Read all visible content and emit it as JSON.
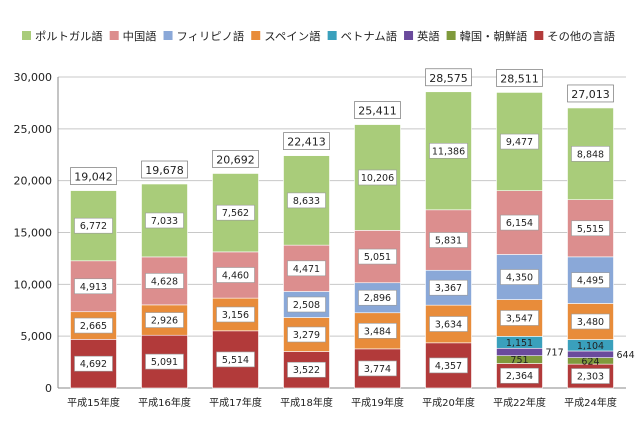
{
  "chart_data": {
    "type": "bar",
    "stacked": true,
    "categories": [
      "平成15年度",
      "平成16年度",
      "平成17年度",
      "平成18年度",
      "平成19年度",
      "平成20年度",
      "平成22年度",
      "平成24年度"
    ],
    "ylim": [
      0,
      30000
    ],
    "yticks": [
      "0",
      "5,000",
      "10,000",
      "15,000",
      "20,000",
      "25,000",
      "30,000"
    ],
    "grid": true,
    "legend_position": "top",
    "series": [
      {
        "name": "その他の言語",
        "color": "#b23a3a",
        "values": [
          4692,
          5091,
          5514,
          3522,
          3774,
          4357,
          2364,
          2303
        ],
        "labels": [
          "4,692",
          "5,091",
          "5,514",
          "3,522",
          "3,774",
          "4,357",
          "2,364",
          "2,303"
        ]
      },
      {
        "name": "韓国・朝鮮語",
        "color": "#7f9a3c",
        "values": [
          0,
          0,
          0,
          0,
          0,
          0,
          751,
          624
        ],
        "labels": [
          "",
          "",
          "",
          "",
          "",
          "",
          "751",
          "624"
        ]
      },
      {
        "name": "英語",
        "color": "#6a4a9c",
        "values": [
          0,
          0,
          0,
          0,
          0,
          0,
          717,
          644
        ],
        "labels": [
          "",
          "",
          "",
          "",
          "",
          "",
          "717",
          "644"
        ]
      },
      {
        "name": "ベトナム語",
        "color": "#3aa0bc",
        "values": [
          0,
          0,
          0,
          0,
          0,
          0,
          1151,
          1104
        ],
        "labels": [
          "",
          "",
          "",
          "",
          "",
          "",
          "1,151",
          "1,104"
        ]
      },
      {
        "name": "スペイン語",
        "color": "#e88c3a",
        "values": [
          2665,
          2926,
          3156,
          3279,
          3484,
          3634,
          3547,
          3480
        ],
        "labels": [
          "2,665",
          "2,926",
          "3,156",
          "3,279",
          "3,484",
          "3,634",
          "3,547",
          "3,480"
        ]
      },
      {
        "name": "フィリピノ語",
        "color": "#8aa8d8",
        "values": [
          0,
          0,
          0,
          2508,
          2896,
          3367,
          4350,
          4495
        ],
        "labels": [
          "",
          "",
          "",
          "2,508",
          "2,896",
          "3,367",
          "4,350",
          "4,495"
        ]
      },
      {
        "name": "中国語",
        "color": "#dc8e8e",
        "values": [
          4913,
          4628,
          4460,
          4471,
          5051,
          5831,
          6154,
          5515
        ],
        "labels": [
          "4,913",
          "4,628",
          "4,460",
          "4,471",
          "5,051",
          "5,831",
          "6,154",
          "5,515"
        ]
      },
      {
        "name": "ポルトガル語",
        "color": "#a9cc7a",
        "values": [
          6772,
          7033,
          7562,
          8633,
          10206,
          11386,
          9477,
          8848
        ],
        "labels": [
          "6,772",
          "7,033",
          "7,562",
          "8,633",
          "10,206",
          "11,386",
          "9,477",
          "8,848"
        ]
      }
    ],
    "totals": [
      "19,042",
      "19,678",
      "20,692",
      "22,413",
      "25,411",
      "28,575",
      "28,511",
      "27,013"
    ],
    "legend_order": [
      "ポルトガル語",
      "中国語",
      "フィリピノ語",
      "スペイン語",
      "ベトナム語",
      "英語",
      "韓国・朝鮮語",
      "その他の言語"
    ]
  }
}
